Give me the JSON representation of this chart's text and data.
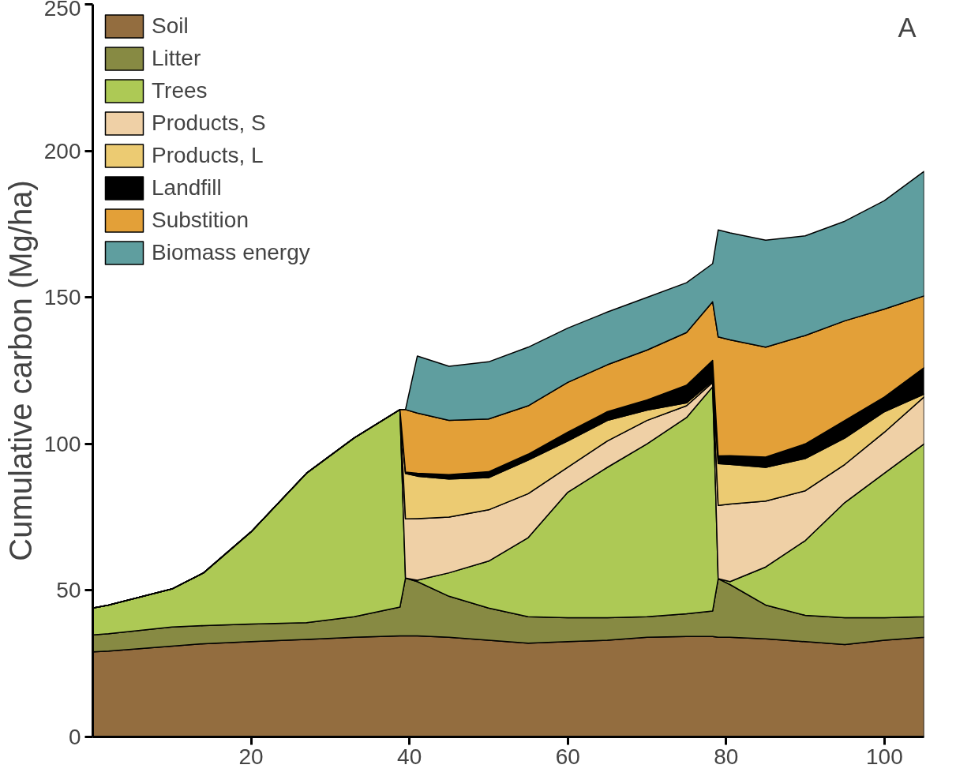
{
  "chart_data": {
    "type": "area",
    "stacked": true,
    "ylabel": "Cumulative carbon (Mg/ha)",
    "annotations": [
      "A"
    ],
    "x": [
      0,
      2,
      10,
      14,
      20,
      27,
      33,
      38.8,
      39.5,
      41,
      45,
      50,
      55,
      60,
      65,
      70,
      75,
      78.3,
      79,
      80.5,
      85,
      90,
      95,
      100,
      105
    ],
    "xlim": [
      0,
      105
    ],
    "xticks": [
      20,
      40,
      60,
      80,
      100
    ],
    "ylim": [
      0,
      250
    ],
    "yticks": [
      0,
      50,
      100,
      150,
      200,
      250
    ],
    "grid": false,
    "legend": "top left",
    "series": [
      {
        "name": "Soil",
        "color": "#936d3f",
        "values": [
          29,
          29.3,
          31,
          31.8,
          32.5,
          33.3,
          34,
          34.5,
          34.5,
          34.5,
          34,
          33,
          32,
          32.5,
          33,
          34,
          34.3,
          34.3,
          34,
          34,
          33.5,
          32.5,
          31.5,
          33,
          34
        ]
      },
      {
        "name": "Litter",
        "color": "#878a43",
        "values": [
          5.8,
          5.9,
          6.5,
          6.2,
          6,
          5.7,
          7,
          9.8,
          19.7,
          18.5,
          14,
          11,
          9,
          8.2,
          7.7,
          7,
          7.7,
          8.7,
          20,
          18,
          11.5,
          9,
          9.2,
          7.7,
          7
        ]
      },
      {
        "name": "Trees",
        "color": "#adc955",
        "values": [
          9.2,
          9.8,
          13,
          18,
          31.5,
          51,
          61,
          67.4,
          0,
          0.5,
          8,
          16,
          27,
          42.8,
          51.3,
          59,
          67,
          76.5,
          0,
          1,
          13,
          25.5,
          39.3,
          49.3,
          59
        ]
      },
      {
        "name": "Products, S",
        "color": "#efd0a6",
        "values": [
          0,
          0,
          0,
          0,
          0,
          0,
          0,
          0,
          20.2,
          21,
          19,
          17.5,
          15,
          8.5,
          9,
          8,
          4,
          1.5,
          25,
          26.5,
          22.5,
          17,
          13,
          14,
          16
        ]
      },
      {
        "name": "Products, L",
        "color": "#eccb72",
        "values": [
          0,
          0,
          0,
          0,
          0,
          0,
          0,
          0,
          15.5,
          14.5,
          13,
          11,
          11.5,
          9,
          7,
          3.5,
          1,
          0.5,
          14.3,
          13.5,
          11.5,
          11,
          9,
          7,
          1
        ]
      },
      {
        "name": "Landfill",
        "color": "#000000",
        "values": [
          0,
          0,
          0,
          0,
          0,
          0,
          0,
          0,
          0.5,
          1,
          1.5,
          2,
          2,
          3,
          3,
          3.5,
          6,
          7,
          2.6,
          3,
          3.5,
          5,
          6,
          5,
          9
        ]
      },
      {
        "name": "Substition",
        "color": "#e3a038",
        "values": [
          0,
          0,
          0,
          0,
          0,
          0,
          0,
          0,
          21.3,
          20.5,
          18.5,
          18,
          16.5,
          17,
          16,
          17,
          18,
          20,
          40.6,
          39.5,
          37.5,
          37,
          34,
          30,
          24.5
        ]
      },
      {
        "name": "Biomass energy",
        "color": "#5f9e9f",
        "values": [
          0,
          0,
          0,
          0,
          0,
          0,
          0,
          0,
          0,
          19.5,
          18.5,
          19.5,
          20,
          18.5,
          18,
          18,
          17,
          13,
          36.5,
          36.5,
          36.5,
          34,
          34,
          37,
          42.5
        ]
      }
    ]
  }
}
